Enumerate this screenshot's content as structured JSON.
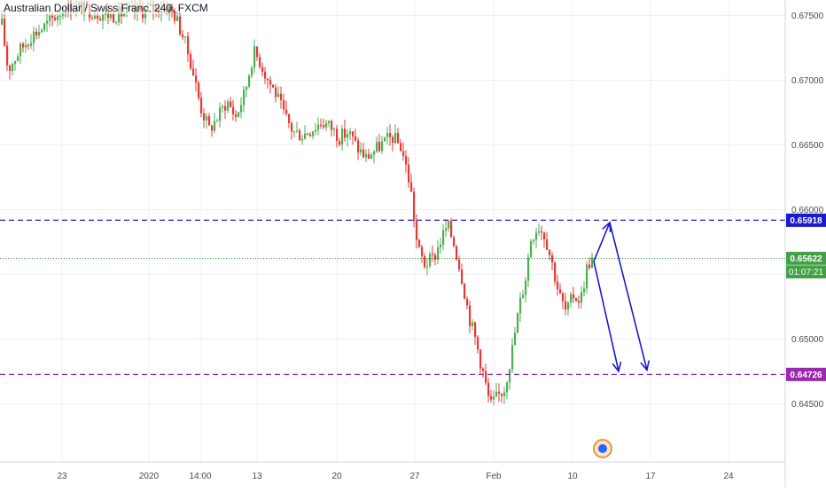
{
  "header": {
    "symbol_title": "Australian Dollar / Swiss Franc, 240, FXCM"
  },
  "colors": {
    "up": "#4caf50",
    "down": "#e53935",
    "resistance": "#1a1acf",
    "support": "#9c27b0",
    "price_line": "#43a047",
    "arrow": "#1a1acf",
    "grid": "#eef0f3"
  },
  "chart_data": {
    "type": "candlestick",
    "title": "Australian Dollar / Swiss Franc, 240, FXCM",
    "yaxis": {
      "side": "right",
      "range": [
        0.6405,
        0.6762
      ],
      "ticks": [
        "0.67500",
        "0.67000",
        "0.66500",
        "0.66000",
        "0.65500",
        "0.65000",
        "0.64500"
      ]
    },
    "xaxis": {
      "ticks": [
        "23",
        "2020",
        "14:00",
        "13",
        "20",
        "27",
        "Feb",
        "10",
        "17",
        "24"
      ]
    },
    "grid": true,
    "candle_path": [
      [
        0,
        0.6748
      ],
      [
        8,
        0.6708
      ],
      [
        20,
        0.6722
      ],
      [
        35,
        0.6735
      ],
      [
        50,
        0.6742
      ],
      [
        65,
        0.6752
      ],
      [
        75,
        0.6758
      ],
      [
        95,
        0.6755
      ],
      [
        110,
        0.6752
      ],
      [
        125,
        0.675
      ],
      [
        140,
        0.6752
      ],
      [
        155,
        0.6753
      ],
      [
        170,
        0.6755
      ],
      [
        185,
        0.6757
      ],
      [
        195,
        0.6752
      ],
      [
        205,
        0.6735
      ],
      [
        215,
        0.6712
      ],
      [
        225,
        0.668
      ],
      [
        235,
        0.6662
      ],
      [
        245,
        0.6672
      ],
      [
        255,
        0.6684
      ],
      [
        265,
        0.6672
      ],
      [
        275,
        0.669
      ],
      [
        285,
        0.6722
      ],
      [
        292,
        0.6715
      ],
      [
        300,
        0.6702
      ],
      [
        310,
        0.669
      ],
      [
        320,
        0.6672
      ],
      [
        330,
        0.666
      ],
      [
        340,
        0.6658
      ],
      [
        350,
        0.6662
      ],
      [
        362,
        0.6668
      ],
      [
        372,
        0.6664
      ],
      [
        382,
        0.6656
      ],
      [
        392,
        0.666
      ],
      [
        402,
        0.6648
      ],
      [
        412,
        0.664
      ],
      [
        422,
        0.6646
      ],
      [
        432,
        0.6652
      ],
      [
        442,
        0.6656
      ],
      [
        452,
        0.6648
      ],
      [
        462,
        0.6618
      ],
      [
        470,
        0.657
      ],
      [
        478,
        0.6558
      ],
      [
        488,
        0.6562
      ],
      [
        496,
        0.6576
      ],
      [
        504,
        0.6588
      ],
      [
        512,
        0.6572
      ],
      [
        520,
        0.6548
      ],
      [
        528,
        0.6518
      ],
      [
        536,
        0.6498
      ],
      [
        544,
        0.6474
      ],
      [
        552,
        0.6448
      ],
      [
        560,
        0.6455
      ],
      [
        568,
        0.6462
      ],
      [
        576,
        0.6488
      ],
      [
        584,
        0.6522
      ],
      [
        592,
        0.6548
      ],
      [
        598,
        0.6578
      ],
      [
        606,
        0.6588
      ],
      [
        614,
        0.658
      ],
      [
        622,
        0.6558
      ],
      [
        630,
        0.6534
      ],
      [
        638,
        0.652
      ],
      [
        646,
        0.6534
      ],
      [
        654,
        0.653
      ],
      [
        662,
        0.6558
      ],
      [
        668,
        0.6562
      ]
    ],
    "levels": [
      {
        "value": 0.65918,
        "label": "0.65918"
      },
      {
        "value": 0.64726,
        "label": "0.64726"
      },
      {
        "value": 0.65622,
        "label": "0.65622",
        "sublabel": "01:07:21"
      }
    ],
    "projection": {
      "origin": [
        670,
        0.656
      ],
      "to_resistance": [
        688,
        0.659
      ],
      "to_support_1": [
        698,
        0.6475
      ],
      "to_support_2": [
        730,
        0.6476
      ]
    }
  }
}
